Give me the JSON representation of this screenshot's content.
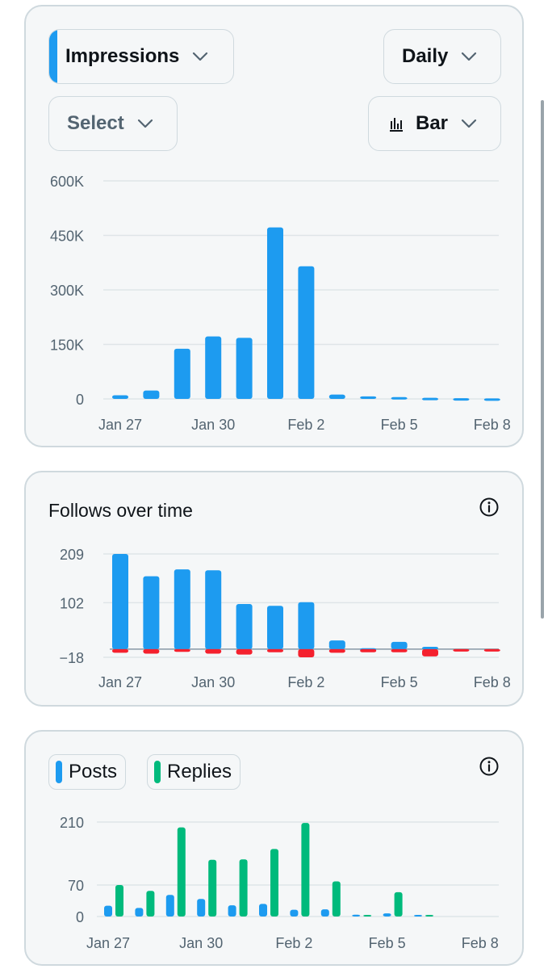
{
  "impressions_card": {
    "metric_dropdown": "Impressions",
    "period_dropdown": "Daily",
    "compare_dropdown": "Select",
    "chart_type_dropdown": "Bar"
  },
  "follows_card": {
    "title": "Follows over time"
  },
  "posts_card": {
    "legend_posts": "Posts",
    "legend_replies": "Replies"
  },
  "colors": {
    "blue": "#1d9bf0",
    "red": "#f4212e",
    "green": "#00ba7c",
    "grid": "#dfe5e8",
    "text_secondary": "#536471"
  },
  "chart_data": [
    {
      "id": "impressions",
      "type": "bar",
      "categories": [
        "Jan 27",
        "Jan 28",
        "Jan 29",
        "Jan 30",
        "Jan 31",
        "Feb 1",
        "Feb 2",
        "Feb 3",
        "Feb 4",
        "Feb 5",
        "Feb 6",
        "Feb 7",
        "Feb 8"
      ],
      "x_tick_labels": [
        "Jan 27",
        "Jan 30",
        "Feb 2",
        "Feb 5",
        "Feb 8"
      ],
      "y_ticks": [
        0,
        150000,
        300000,
        450000,
        600000
      ],
      "y_tick_labels": [
        "0",
        "150K",
        "300K",
        "450K",
        "600K"
      ],
      "ylim": [
        0,
        600000
      ],
      "series": [
        {
          "name": "Impressions",
          "color": "#1d9bf0",
          "values": [
            10000,
            23000,
            138000,
            172000,
            168000,
            472000,
            365000,
            12000,
            7000,
            5000,
            3000,
            2000,
            1500
          ]
        }
      ]
    },
    {
      "id": "follows",
      "type": "bar",
      "title": "Follows over time",
      "categories": [
        "Jan 27",
        "Jan 28",
        "Jan 29",
        "Jan 30",
        "Jan 31",
        "Feb 1",
        "Feb 2",
        "Feb 3",
        "Feb 4",
        "Feb 5",
        "Feb 6",
        "Feb 7",
        "Feb 8"
      ],
      "x_tick_labels": [
        "Jan 27",
        "Jan 30",
        "Feb 2",
        "Feb 5",
        "Feb 8"
      ],
      "y_ticks": [
        -18,
        102,
        209
      ],
      "y_tick_labels": [
        "−18",
        "102",
        "209"
      ],
      "ylim": [
        -18,
        209
      ],
      "series": [
        {
          "name": "Follows",
          "color": "#1d9bf0",
          "values": [
            209,
            160,
            175,
            173,
            99,
            95,
            103,
            19,
            2,
            16,
            5,
            0,
            0
          ]
        },
        {
          "name": "Unfollows",
          "color": "#f4212e",
          "values": [
            -8,
            -10,
            -6,
            -10,
            -12,
            -7,
            -18,
            -8,
            -7,
            -7,
            -16,
            -3,
            -5
          ]
        }
      ]
    },
    {
      "id": "posts_replies",
      "type": "bar",
      "categories": [
        "Jan 27",
        "Jan 28",
        "Jan 29",
        "Jan 30",
        "Jan 31",
        "Feb 1",
        "Feb 2",
        "Feb 3",
        "Feb 4",
        "Feb 5",
        "Feb 6",
        "Feb 7",
        "Feb 8"
      ],
      "x_tick_labels": [
        "Jan 27",
        "Jan 30",
        "Feb 2",
        "Feb 5",
        "Feb 8"
      ],
      "y_ticks": [
        0,
        70,
        210
      ],
      "y_tick_labels": [
        "0",
        "70",
        "210"
      ],
      "ylim": [
        0,
        210
      ],
      "series": [
        {
          "name": "Posts",
          "color": "#1d9bf0",
          "values": [
            24,
            19,
            48,
            39,
            25,
            28,
            15,
            16,
            4,
            7,
            2,
            0,
            0
          ]
        },
        {
          "name": "Replies",
          "color": "#00ba7c",
          "values": [
            70,
            57,
            198,
            126,
            127,
            150,
            208,
            78,
            2,
            54,
            3,
            0,
            0
          ]
        }
      ]
    }
  ]
}
